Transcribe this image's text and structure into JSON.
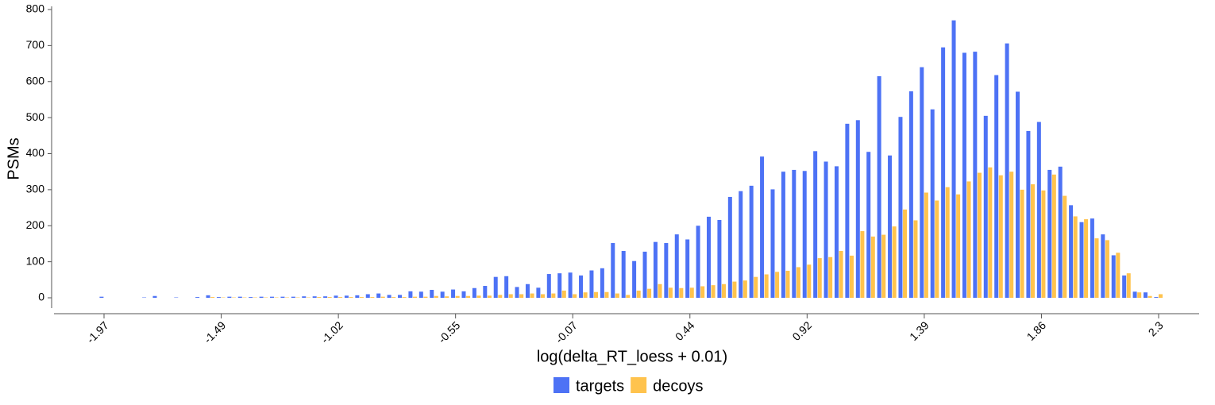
{
  "chart_data": {
    "type": "bar",
    "xlabel": "log(delta_RT_loess + 0.01)",
    "ylabel": "PSMs",
    "categories": [
      "-1.97",
      null,
      null,
      null,
      null,
      null,
      null,
      null,
      null,
      null,
      null,
      "-1.49",
      null,
      null,
      null,
      null,
      null,
      null,
      null,
      null,
      null,
      null,
      "-1.02",
      null,
      null,
      null,
      null,
      null,
      null,
      null,
      null,
      null,
      null,
      "-0.55",
      null,
      null,
      null,
      null,
      null,
      null,
      null,
      null,
      null,
      null,
      "-0.07",
      null,
      null,
      null,
      null,
      null,
      null,
      null,
      null,
      null,
      null,
      "0.44",
      null,
      null,
      null,
      null,
      null,
      null,
      null,
      null,
      null,
      null,
      "0.92",
      null,
      null,
      null,
      null,
      null,
      null,
      null,
      null,
      null,
      null,
      "1.39",
      null,
      null,
      null,
      null,
      null,
      null,
      null,
      null,
      null,
      null,
      "1.86",
      null,
      null,
      null,
      null,
      null,
      null,
      null,
      null,
      null,
      null,
      "2.3"
    ],
    "series": [
      {
        "name": "targets",
        "color": "#4d72f5",
        "values": [
          3,
          0,
          0,
          0,
          1,
          5,
          0,
          1,
          0,
          2,
          7,
          2,
          3,
          3,
          2,
          3,
          3,
          3,
          3,
          4,
          4,
          4,
          6,
          6,
          7,
          10,
          12,
          8,
          8,
          18,
          17,
          22,
          17,
          23,
          18,
          27,
          33,
          58,
          60,
          30,
          38,
          28,
          66,
          68,
          70,
          62,
          76,
          82,
          152,
          130,
          102,
          128,
          155,
          152,
          176,
          162,
          200,
          225,
          216,
          280,
          296,
          311,
          392,
          301,
          350,
          355,
          352,
          407,
          378,
          365,
          483,
          493,
          405,
          615,
          395,
          502,
          573,
          640,
          523,
          695,
          770,
          680,
          683,
          505,
          618,
          706,
          572,
          463,
          488,
          355,
          364,
          257,
          210,
          220,
          176,
          118,
          62,
          17,
          15,
          2
        ]
      },
      {
        "name": "decoys",
        "color": "#ffc34d",
        "values": [
          0,
          0,
          0,
          0,
          0,
          0,
          0,
          0,
          0,
          0,
          2,
          1,
          1,
          1,
          1,
          1,
          1,
          1,
          1,
          1,
          2,
          2,
          2,
          2,
          2,
          2,
          3,
          2,
          2,
          3,
          3,
          5,
          4,
          5,
          5,
          6,
          6,
          8,
          10,
          10,
          12,
          10,
          12,
          20,
          10,
          15,
          16,
          16,
          12,
          8,
          20,
          25,
          38,
          28,
          27,
          28,
          32,
          35,
          38,
          45,
          48,
          58,
          65,
          72,
          75,
          85,
          92,
          110,
          113,
          130,
          117,
          185,
          170,
          175,
          198,
          245,
          215,
          292,
          270,
          307,
          287,
          323,
          347,
          362,
          340,
          350,
          300,
          315,
          298,
          342,
          283,
          226,
          218,
          165,
          160,
          125,
          68,
          15,
          5,
          10
        ]
      }
    ],
    "ylim": [
      0,
      800
    ],
    "yticks": [
      0,
      100,
      200,
      300,
      400,
      500,
      600,
      700,
      800
    ],
    "grid": false,
    "legend": "bottom"
  }
}
